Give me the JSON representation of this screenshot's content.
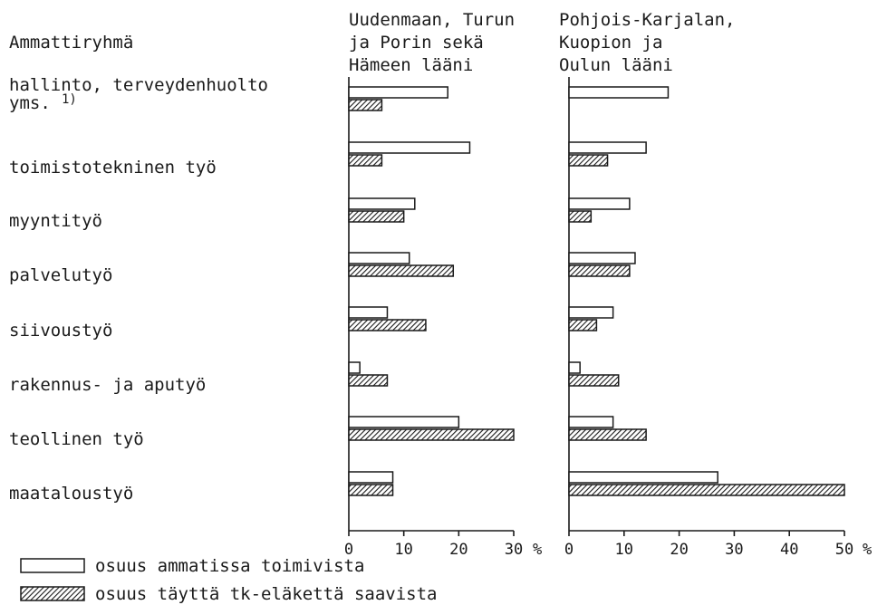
{
  "chart_data": {
    "type": "bar",
    "orientation": "horizontal",
    "category_header": "Ammattiryhmä",
    "categories": [
      "hallinto, terveydenhuolto yms.",
      "toimistotekninen työ",
      "myyntityö",
      "palvelutyö",
      "siivoustyö",
      "rakennus- ja aputyö",
      "teollinen työ",
      "maataloustyö"
    ],
    "footnote_marker": "1)",
    "unit_label": "%",
    "legend": [
      {
        "label": "osuus ammatissa toimivista",
        "style": "open",
        "color": "#ffffff"
      },
      {
        "label": "osuus täyttä tk-eläkettä saavista",
        "style": "hatched",
        "color": "#1a1a1a"
      }
    ],
    "panels": [
      {
        "title": [
          "Uudenmaan, Turun",
          "ja Porin sekä",
          "Hämeen lääni"
        ],
        "xlim": [
          0,
          30
        ],
        "xticks": [
          "0",
          "10",
          "20",
          "30"
        ],
        "series": [
          {
            "values": [
              18,
              22,
              12,
              11,
              7,
              2,
              20,
              8
            ]
          },
          {
            "values": [
              6,
              6,
              10,
              19,
              14,
              7,
              30,
              8
            ]
          }
        ]
      },
      {
        "title": [
          "Pohjois-Karjalan,",
          "Kuopion ja",
          "Oulun lääni"
        ],
        "xlim": [
          0,
          50
        ],
        "xticks": [
          "0",
          "10",
          "20",
          "30",
          "40",
          "50"
        ],
        "series": [
          {
            "values": [
              18,
              14,
              11,
              12,
              8,
              2,
              8,
              27
            ]
          },
          {
            "values": [
              0,
              7,
              4,
              11,
              5,
              9,
              14,
              50
            ]
          }
        ]
      }
    ]
  }
}
